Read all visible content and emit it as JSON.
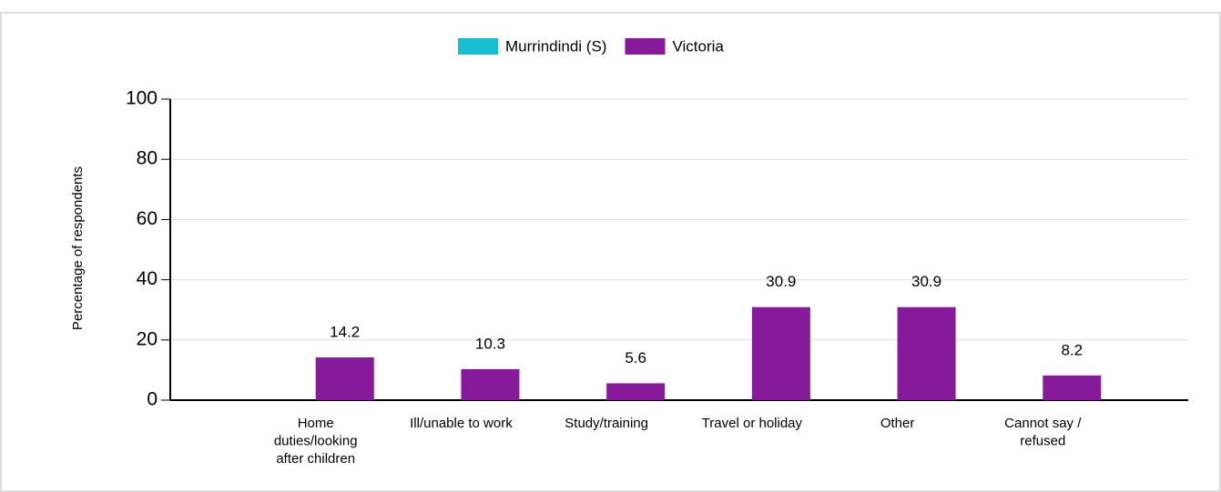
{
  "chart_data": {
    "type": "bar",
    "categories": [
      "Home duties/looking after children",
      "Ill/unable to work",
      "Study/training",
      "Travel or holiday",
      "Other",
      "Cannot say / refused"
    ],
    "series": [
      {
        "name": "Murrindindi (S)",
        "color": "#17becf",
        "values": [
          null,
          null,
          null,
          null,
          null,
          null
        ]
      },
      {
        "name": "Victoria",
        "color": "#861a9b",
        "values": [
          14.2,
          10.3,
          5.6,
          30.9,
          30.9,
          8.2
        ]
      }
    ],
    "y_label": "Percentage of respondents",
    "ylim": [
      0,
      100
    ],
    "yticks": [
      0,
      20,
      40,
      60,
      80,
      100
    ],
    "grid": true,
    "legend": "top"
  }
}
